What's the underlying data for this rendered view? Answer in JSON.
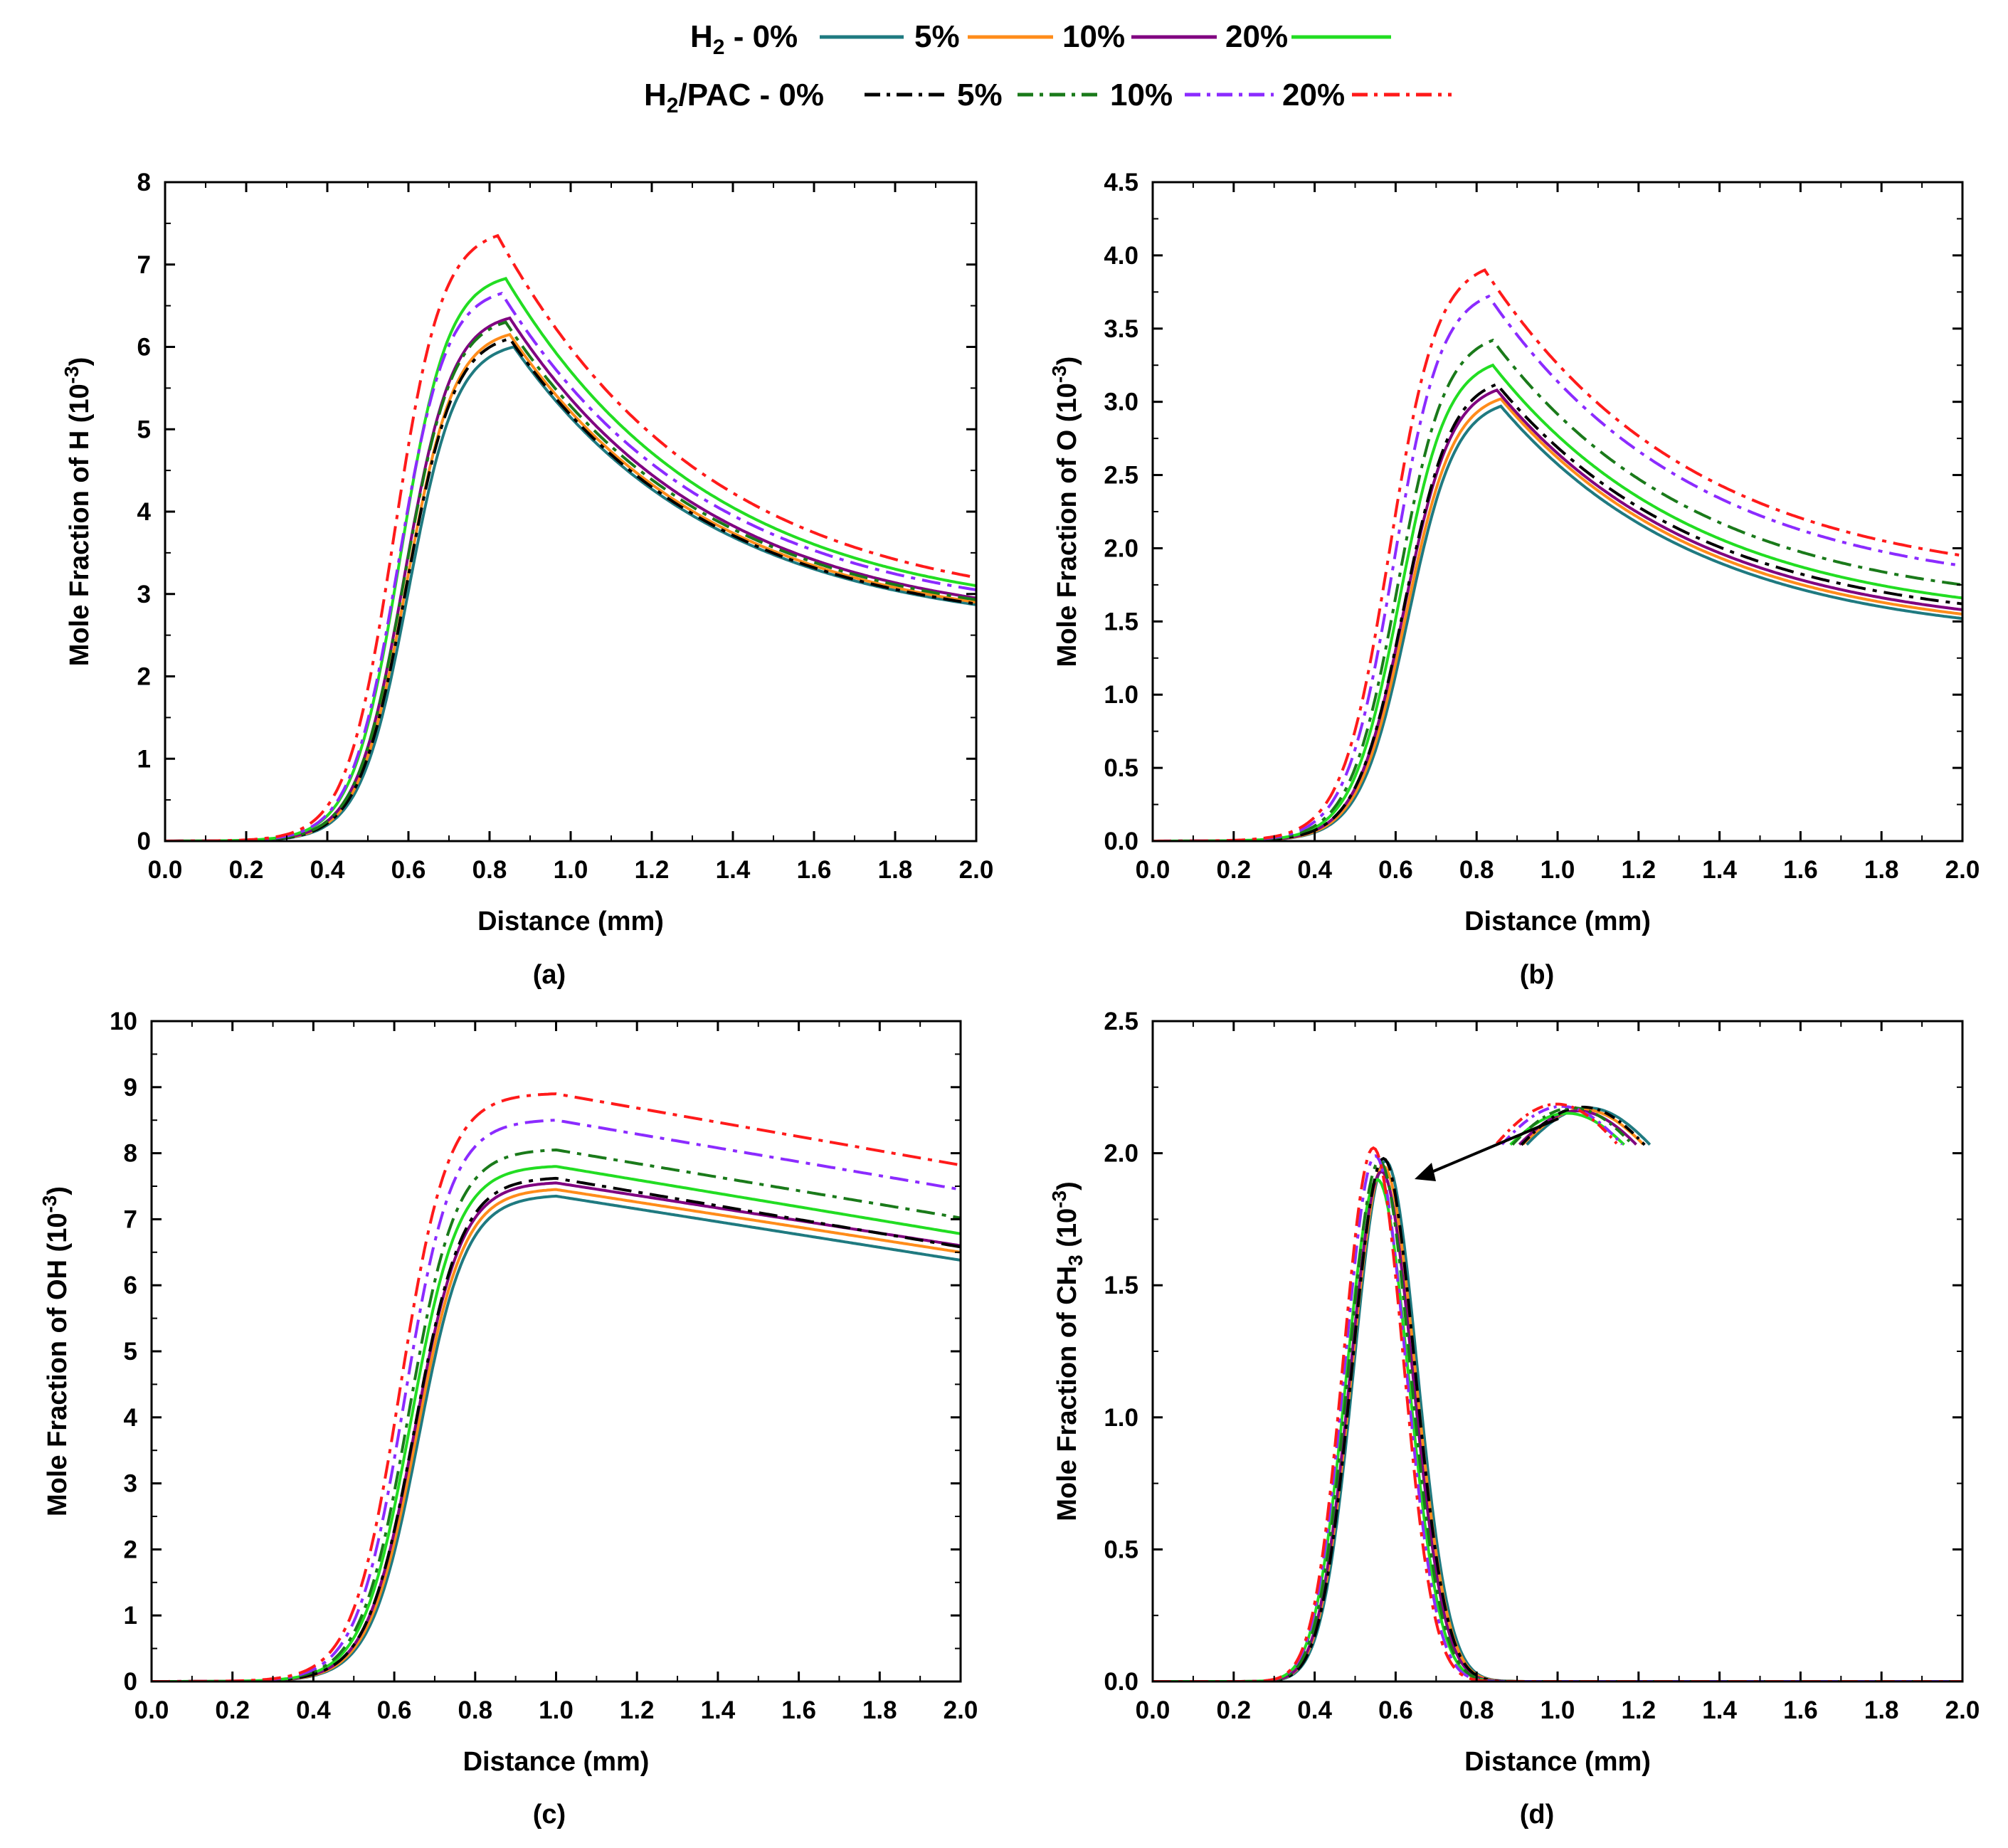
{
  "figure": {
    "legend_h2": {
      "prefix": "H",
      "prefix_sub": "2",
      "prefix_rest": " - 0%",
      "entries": [
        "5%",
        "10%",
        "20%"
      ]
    },
    "legend_h2pac": {
      "prefix": "H",
      "prefix_sub": "2",
      "prefix_rest": "/PAC - 0%",
      "entries": [
        "5%",
        "10%",
        "20%"
      ]
    }
  },
  "series_styles": [
    {
      "name": "H2 - 0%",
      "color": "#1f7a80",
      "dash": "solid"
    },
    {
      "name": "H2 - 5%",
      "color": "#ff8c1a",
      "dash": "solid"
    },
    {
      "name": "H2 - 10%",
      "color": "#800080",
      "dash": "solid"
    },
    {
      "name": "H2 - 20%",
      "color": "#22dd22",
      "dash": "solid"
    },
    {
      "name": "H2/PAC - 0%",
      "color": "#000000",
      "dash": "dashdot"
    },
    {
      "name": "H2/PAC - 5%",
      "color": "#1a7a1a",
      "dash": "dashdot"
    },
    {
      "name": "H2/PAC - 10%",
      "color": "#8b2bff",
      "dash": "dashdot"
    },
    {
      "name": "H2/PAC - 20%",
      "color": "#ff1a1a",
      "dash": "dashdot"
    }
  ],
  "chart_data": [
    {
      "type": "line",
      "panel": "(a)",
      "ylabel_prefix": "Mole Fraction of H (10",
      "ylabel_sup": "-3",
      "ylabel_suffix": ")",
      "xlabel": "Distance (mm)",
      "xlim": [
        0,
        2.0
      ],
      "ylim": [
        0,
        8
      ],
      "xticks": [
        "0.0",
        "0.2",
        "0.4",
        "0.6",
        "0.8",
        "1.0",
        "1.2",
        "1.4",
        "1.6",
        "1.8",
        "2.0"
      ],
      "yticks": [
        "0",
        "1",
        "2",
        "3",
        "4",
        "5",
        "6",
        "7",
        "8"
      ],
      "profile": "peak",
      "series": [
        {
          "name": "H2 - 0%",
          "peak_x": 0.86,
          "peak_y": 6.0,
          "rise_x": 0.6,
          "end_y": 2.87
        },
        {
          "name": "H2 - 5%",
          "peak_x": 0.85,
          "peak_y": 6.15,
          "rise_x": 0.595,
          "end_y": 2.9
        },
        {
          "name": "H2 - 10%",
          "peak_x": 0.85,
          "peak_y": 6.35,
          "rise_x": 0.59,
          "end_y": 2.95
        },
        {
          "name": "H2 - 20%",
          "peak_x": 0.84,
          "peak_y": 6.83,
          "rise_x": 0.58,
          "end_y": 3.1
        },
        {
          "name": "H2/PAC - 0%",
          "peak_x": 0.85,
          "peak_y": 6.1,
          "rise_x": 0.595,
          "end_y": 2.88
        },
        {
          "name": "H2/PAC - 5%",
          "peak_x": 0.84,
          "peak_y": 6.3,
          "rise_x": 0.59,
          "end_y": 2.93
        },
        {
          "name": "H2/PAC - 10%",
          "peak_x": 0.83,
          "peak_y": 6.65,
          "rise_x": 0.575,
          "end_y": 3.05
        },
        {
          "name": "H2/PAC - 20%",
          "peak_x": 0.82,
          "peak_y": 7.35,
          "rise_x": 0.565,
          "end_y": 3.2
        }
      ],
      "caption": "(a)"
    },
    {
      "type": "line",
      "panel": "(b)",
      "ylabel_prefix": "Mole Fraction of O (10",
      "ylabel_sup": "-3",
      "ylabel_suffix": ")",
      "xlabel": "Distance (mm)",
      "xlim": [
        0,
        2.0
      ],
      "ylim": [
        0,
        4.5
      ],
      "xticks": [
        "0.0",
        "0.2",
        "0.4",
        "0.6",
        "0.8",
        "1.0",
        "1.2",
        "1.4",
        "1.6",
        "1.8",
        "2.0"
      ],
      "yticks": [
        "0.0",
        "0.5",
        "1.0",
        "1.5",
        "2.0",
        "2.5",
        "3.0",
        "3.5",
        "4.0",
        "4.5"
      ],
      "profile": "peak",
      "series": [
        {
          "name": "H2 - 0%",
          "peak_x": 0.86,
          "peak_y": 2.97,
          "rise_x": 0.63,
          "end_y": 1.52
        },
        {
          "name": "H2 - 5%",
          "peak_x": 0.86,
          "peak_y": 3.02,
          "rise_x": 0.625,
          "end_y": 1.55
        },
        {
          "name": "H2 - 10%",
          "peak_x": 0.85,
          "peak_y": 3.08,
          "rise_x": 0.62,
          "end_y": 1.58
        },
        {
          "name": "H2 - 20%",
          "peak_x": 0.84,
          "peak_y": 3.25,
          "rise_x": 0.61,
          "end_y": 1.66
        },
        {
          "name": "H2/PAC - 0%",
          "peak_x": 0.85,
          "peak_y": 3.12,
          "rise_x": 0.62,
          "end_y": 1.62
        },
        {
          "name": "H2/PAC - 5%",
          "peak_x": 0.84,
          "peak_y": 3.42,
          "rise_x": 0.605,
          "end_y": 1.75
        },
        {
          "name": "H2/PAC - 10%",
          "peak_x": 0.83,
          "peak_y": 3.72,
          "rise_x": 0.595,
          "end_y": 1.88
        },
        {
          "name": "H2/PAC - 20%",
          "peak_x": 0.82,
          "peak_y": 3.9,
          "rise_x": 0.585,
          "end_y": 1.95
        }
      ],
      "caption": "(b)"
    },
    {
      "type": "line",
      "panel": "(c)",
      "ylabel_prefix": "Mole Fraction of OH (10",
      "ylabel_sup": "-3",
      "ylabel_suffix": ")",
      "xlabel": "Distance (mm)",
      "xlim": [
        0,
        2.0
      ],
      "ylim": [
        0,
        10
      ],
      "xticks": [
        "0.0",
        "0.2",
        "0.4",
        "0.6",
        "0.8",
        "1.0",
        "1.2",
        "1.4",
        "1.6",
        "1.8",
        "2.0"
      ],
      "yticks": [
        "0",
        "1",
        "2",
        "3",
        "4",
        "5",
        "6",
        "7",
        "8",
        "9",
        "10"
      ],
      "profile": "plateau",
      "series": [
        {
          "name": "H2 - 0%",
          "peak_x": 1.0,
          "peak_y": 7.35,
          "rise_x": 0.66,
          "end_y": 6.38
        },
        {
          "name": "H2 - 5%",
          "peak_x": 1.0,
          "peak_y": 7.45,
          "rise_x": 0.655,
          "end_y": 6.5
        },
        {
          "name": "H2 - 10%",
          "peak_x": 1.0,
          "peak_y": 7.55,
          "rise_x": 0.65,
          "end_y": 6.6
        },
        {
          "name": "H2 - 20%",
          "peak_x": 1.0,
          "peak_y": 7.8,
          "rise_x": 0.64,
          "end_y": 6.78
        },
        {
          "name": "H2/PAC - 0%",
          "peak_x": 1.0,
          "peak_y": 7.62,
          "rise_x": 0.65,
          "end_y": 6.58
        },
        {
          "name": "H2/PAC - 5%",
          "peak_x": 1.0,
          "peak_y": 8.05,
          "rise_x": 0.635,
          "end_y": 7.02
        },
        {
          "name": "H2/PAC - 10%",
          "peak_x": 1.0,
          "peak_y": 8.5,
          "rise_x": 0.625,
          "end_y": 7.45
        },
        {
          "name": "H2/PAC - 20%",
          "peak_x": 1.0,
          "peak_y": 8.9,
          "rise_x": 0.615,
          "end_y": 7.82
        }
      ],
      "caption": "(c)"
    },
    {
      "type": "line",
      "panel": "(d)",
      "ylabel_prefix": "Mole Fraction of CH",
      "ylabel_sub": "3",
      "ylabel_suffix2": " (10",
      "ylabel_sup": "-3",
      "ylabel_suffix": ")",
      "xlabel": "Distance (mm)",
      "xlim": [
        0,
        2.0
      ],
      "ylim": [
        0,
        2.5
      ],
      "xticks": [
        "0.0",
        "0.2",
        "0.4",
        "0.6",
        "0.8",
        "1.0",
        "1.2",
        "1.4",
        "1.6",
        "1.8",
        "2.0"
      ],
      "yticks": [
        "0.0",
        "0.5",
        "1.0",
        "1.5",
        "2.0",
        "2.5"
      ],
      "profile": "gauss",
      "series": [
        {
          "name": "H2 - 0%",
          "peak_x": 0.575,
          "peak_y": 1.97,
          "width": 0.078
        },
        {
          "name": "H2 - 5%",
          "peak_x": 0.57,
          "peak_y": 1.95,
          "width": 0.078
        },
        {
          "name": "H2 - 10%",
          "peak_x": 0.565,
          "peak_y": 1.93,
          "width": 0.077
        },
        {
          "name": "H2 - 20%",
          "peak_x": 0.555,
          "peak_y": 1.9,
          "width": 0.077
        },
        {
          "name": "H2/PAC - 0%",
          "peak_x": 0.57,
          "peak_y": 1.98,
          "width": 0.077
        },
        {
          "name": "H2/PAC - 5%",
          "peak_x": 0.56,
          "peak_y": 1.97,
          "width": 0.076
        },
        {
          "name": "H2/PAC - 10%",
          "peak_x": 0.55,
          "peak_y": 1.99,
          "width": 0.075
        },
        {
          "name": "H2/PAC - 20%",
          "peak_x": 0.545,
          "peak_y": 2.02,
          "width": 0.074
        }
      ],
      "caption": "(d)"
    }
  ]
}
